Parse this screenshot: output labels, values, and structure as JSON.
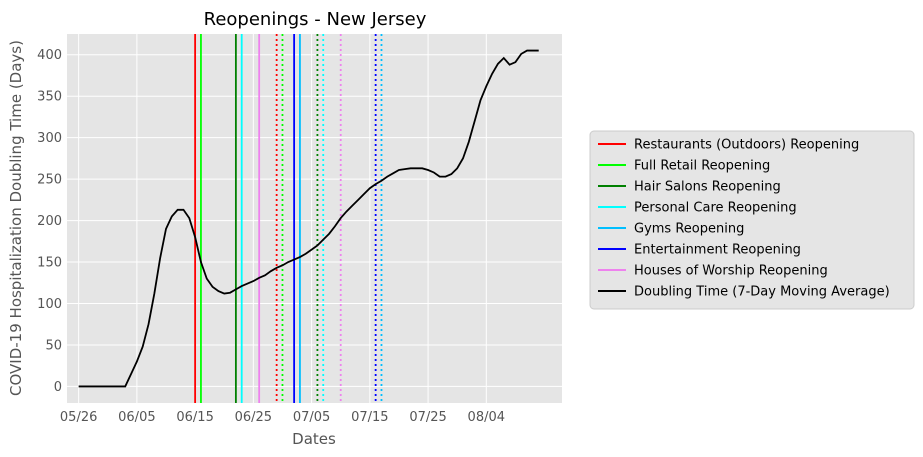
{
  "chart_data": {
    "type": "line",
    "title": "Reopenings - New Jersey",
    "xlabel": "Dates",
    "ylabel": "COVID-19 Hospitalization Doubling Time (Days)",
    "x_tick_labels": [
      "05/26",
      "06/05",
      "06/15",
      "06/25",
      "07/05",
      "07/15",
      "07/25",
      "08/04"
    ],
    "y_ticks": [
      0,
      50,
      100,
      150,
      200,
      250,
      300,
      350,
      400
    ],
    "xlim": [
      "2020-05-24",
      "2020-08-17"
    ],
    "ylim": [
      -20,
      425
    ],
    "grid": true,
    "legend_position": "right",
    "series": [
      {
        "name": "Doubling Time (7-Day Moving Average)",
        "color": "#000000",
        "x": [
          "2020-05-26",
          "2020-05-27",
          "2020-05-28",
          "2020-05-29",
          "2020-05-30",
          "2020-05-31",
          "2020-06-01",
          "2020-06-02",
          "2020-06-03",
          "2020-06-04",
          "2020-06-05",
          "2020-06-06",
          "2020-06-07",
          "2020-06-08",
          "2020-06-09",
          "2020-06-10",
          "2020-06-11",
          "2020-06-12",
          "2020-06-13",
          "2020-06-14",
          "2020-06-15",
          "2020-06-16",
          "2020-06-17",
          "2020-06-18",
          "2020-06-19",
          "2020-06-20",
          "2020-06-21",
          "2020-06-22",
          "2020-06-23",
          "2020-06-24",
          "2020-06-25",
          "2020-06-26",
          "2020-06-27",
          "2020-06-28",
          "2020-06-29",
          "2020-06-30",
          "2020-07-01",
          "2020-07-02",
          "2020-07-03",
          "2020-07-04",
          "2020-07-05",
          "2020-07-06",
          "2020-07-07",
          "2020-07-08",
          "2020-07-09",
          "2020-07-10",
          "2020-07-11",
          "2020-07-12",
          "2020-07-13",
          "2020-07-14",
          "2020-07-15",
          "2020-07-16",
          "2020-07-17",
          "2020-07-18",
          "2020-07-19",
          "2020-07-20",
          "2020-07-21",
          "2020-07-22",
          "2020-07-23",
          "2020-07-24",
          "2020-07-25",
          "2020-07-26",
          "2020-07-27",
          "2020-07-28",
          "2020-07-29",
          "2020-07-30",
          "2020-07-31",
          "2020-08-01",
          "2020-08-02",
          "2020-08-03",
          "2020-08-04",
          "2020-08-05",
          "2020-08-06",
          "2020-08-07",
          "2020-08-08",
          "2020-08-09",
          "2020-08-10",
          "2020-08-11",
          "2020-08-12",
          "2020-08-13"
        ],
        "y": [
          0,
          0,
          0,
          0,
          0,
          0,
          0,
          0,
          0,
          15,
          30,
          48,
          75,
          112,
          155,
          190,
          205,
          213,
          213,
          203,
          180,
          150,
          130,
          120,
          115,
          112,
          113,
          117,
          121,
          124,
          127,
          131,
          134,
          139,
          143,
          146,
          150,
          153,
          156,
          160,
          165,
          170,
          177,
          184,
          193,
          203,
          211,
          218,
          225,
          232,
          239,
          244,
          248,
          253,
          257,
          261,
          262,
          263,
          263,
          263,
          261,
          258,
          253,
          253,
          256,
          263,
          275,
          295,
          320,
          345,
          362,
          377,
          389,
          396,
          388,
          391,
          401,
          405,
          405,
          405
        ]
      }
    ],
    "reopenings": [
      {
        "name": "Restaurants (Outdoors) Reopening",
        "date": "2020-06-15",
        "color": "#ff0000",
        "style": "solid"
      },
      {
        "name": "Full Retail Reopening",
        "date": "2020-06-16",
        "color": "#00ff00",
        "style": "solid"
      },
      {
        "name": "Hair Salons Reopening",
        "date": "2020-06-22",
        "color": "#008000",
        "style": "solid"
      },
      {
        "name": "Personal Care Reopening",
        "date": "2020-06-23",
        "color": "#00ffff",
        "style": "solid"
      },
      {
        "name": "Houses of Worship Reopening",
        "date": "2020-06-26",
        "color": "#ee82ee",
        "style": "solid"
      },
      {
        "name": "Restaurants (Outdoors) Reopening",
        "date": "2020-06-29",
        "color": "#ff0000",
        "style": "dotted"
      },
      {
        "name": "Full Retail Reopening",
        "date": "2020-06-30",
        "color": "#00ff00",
        "style": "dotted"
      },
      {
        "name": "Entertainment Reopening",
        "date": "2020-07-02",
        "color": "#0000ff",
        "style": "solid"
      },
      {
        "name": "Gyms Reopening",
        "date": "2020-07-03",
        "color": "#00bfff",
        "style": "solid"
      },
      {
        "name": "Hair Salons Reopening",
        "date": "2020-07-06",
        "color": "#008000",
        "style": "dotted"
      },
      {
        "name": "Personal Care Reopening",
        "date": "2020-07-07",
        "color": "#00ffff",
        "style": "dotted"
      },
      {
        "name": "Houses of Worship Reopening",
        "date": "2020-07-10",
        "color": "#ee82ee",
        "style": "dotted"
      },
      {
        "name": "Entertainment Reopening",
        "date": "2020-07-16",
        "color": "#0000ff",
        "style": "dotted"
      },
      {
        "name": "Gyms Reopening",
        "date": "2020-07-17",
        "color": "#00bfff",
        "style": "dotted"
      }
    ],
    "legend": [
      {
        "label": "Restaurants (Outdoors) Reopening",
        "color": "#ff0000"
      },
      {
        "label": "Full Retail Reopening",
        "color": "#00ff00"
      },
      {
        "label": "Hair Salons Reopening",
        "color": "#008000"
      },
      {
        "label": "Personal Care Reopening",
        "color": "#00ffff"
      },
      {
        "label": "Gyms Reopening",
        "color": "#00bfff"
      },
      {
        "label": "Entertainment Reopening",
        "color": "#0000ff"
      },
      {
        "label": "Houses of Worship Reopening",
        "color": "#ee82ee"
      },
      {
        "label": "Doubling Time (7-Day Moving Average)",
        "color": "#000000"
      }
    ]
  }
}
